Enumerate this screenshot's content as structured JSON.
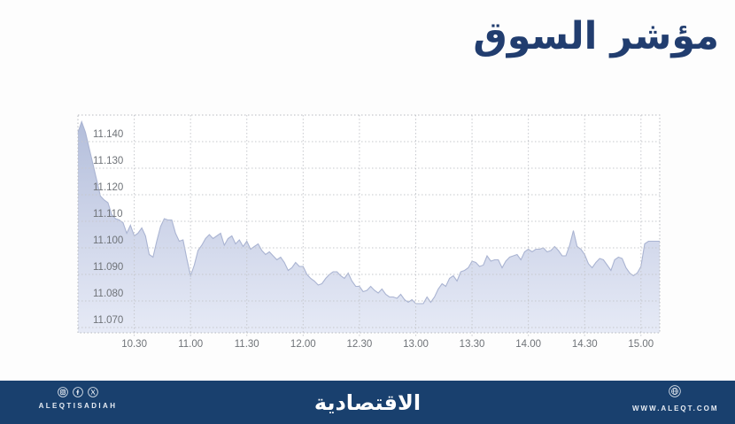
{
  "title": "مؤشر السوق",
  "colors": {
    "page_bg": "#fdfdfd",
    "title": "#213d6f",
    "footer_bg": "#19406e",
    "footer_text": "#e8edf4",
    "grid": "#c6c8cd",
    "plot_border": "#b8bac0",
    "axis_text": "#6f7378",
    "area_top": "#b2bdda",
    "area_mid": "#ccd3e8",
    "area_bottom": "#e6eaf6",
    "line": "#aab4d2",
    "plot_bg": "#ffffff"
  },
  "chart_data": {
    "type": "area",
    "title": "مؤشر السوق",
    "x_start_minutes": 600,
    "x_step_minutes": 2,
    "x_ticks": [
      {
        "minutes": 630,
        "label": "10.30"
      },
      {
        "minutes": 660,
        "label": "11.00"
      },
      {
        "minutes": 690,
        "label": "11.30"
      },
      {
        "minutes": 720,
        "label": "12.00"
      },
      {
        "minutes": 750,
        "label": "12.30"
      },
      {
        "minutes": 780,
        "label": "13.00"
      },
      {
        "minutes": 810,
        "label": "13.30"
      },
      {
        "minutes": 840,
        "label": "14.00"
      },
      {
        "minutes": 870,
        "label": "14.30"
      },
      {
        "minutes": 900,
        "label": "15.00"
      }
    ],
    "y_ticks": [
      {
        "value": 11.14,
        "label": "11.140"
      },
      {
        "value": 11.13,
        "label": "11.130"
      },
      {
        "value": 11.12,
        "label": "11.120"
      },
      {
        "value": 11.11,
        "label": "11.110"
      },
      {
        "value": 11.1,
        "label": "11.100"
      },
      {
        "value": 11.09,
        "label": "11.090"
      },
      {
        "value": 11.08,
        "label": "11.080"
      },
      {
        "value": 11.07,
        "label": "11.070"
      }
    ],
    "x_range_minutes": [
      600,
      910
    ],
    "y_range": [
      11.068,
      11.15
    ],
    "grid": true,
    "values": [
      11.1435,
      11.1475,
      11.1435,
      11.1375,
      11.1315,
      11.1255,
      11.1195,
      11.118,
      11.117,
      11.1125,
      11.111,
      11.1105,
      11.1095,
      11.1055,
      11.1085,
      11.1045,
      11.1055,
      11.1075,
      11.1045,
      11.0975,
      11.0965,
      11.1025,
      11.108,
      11.111,
      11.1105,
      11.1105,
      11.1055,
      11.1025,
      11.103,
      11.096,
      11.0895,
      11.0935,
      11.099,
      11.101,
      11.1035,
      11.105,
      11.1035,
      11.1045,
      11.1055,
      11.101,
      11.1035,
      11.1045,
      11.1015,
      11.103,
      11.1005,
      11.1025,
      11.0995,
      11.1005,
      11.1015,
      11.099,
      11.0975,
      11.0985,
      11.097,
      11.0955,
      11.0965,
      11.0945,
      11.0915,
      11.0925,
      11.0945,
      11.093,
      11.093,
      11.09,
      11.0885,
      11.0875,
      11.086,
      11.0865,
      11.0885,
      11.09,
      11.091,
      11.091,
      11.0895,
      11.0885,
      11.0905,
      11.0875,
      11.0855,
      11.0855,
      11.0835,
      11.084,
      11.0855,
      11.084,
      11.083,
      11.0845,
      11.0825,
      11.0815,
      11.0815,
      11.081,
      11.0825,
      11.0805,
      11.0795,
      11.0805,
      11.079,
      11.079,
      11.079,
      11.0815,
      11.0795,
      11.0815,
      11.0845,
      11.0865,
      11.0855,
      11.0885,
      11.0895,
      11.0875,
      11.091,
      11.0915,
      11.0925,
      11.095,
      11.0945,
      11.093,
      11.0935,
      11.097,
      11.095,
      11.0955,
      11.0955,
      11.0925,
      11.095,
      11.0965,
      11.097,
      11.0975,
      11.0955,
      11.0985,
      11.0995,
      11.0985,
      11.0995,
      11.0995,
      11.1,
      11.0985,
      11.099,
      11.1005,
      11.099,
      11.097,
      11.097,
      11.101,
      11.1065,
      11.1005,
      11.0995,
      11.0975,
      11.094,
      11.0925,
      11.0945,
      11.096,
      11.0955,
      11.0935,
      11.0915,
      11.0955,
      11.0965,
      11.096,
      11.0925,
      11.0905,
      11.0895,
      11.0905,
      11.093,
      11.1015,
      11.1025,
      11.1025,
      11.1025,
      11.1025
    ]
  },
  "footer": {
    "brand_latin": "ALEQTISADIAH",
    "brand_arabic": "الاقتصادية",
    "website": "WWW.ALEQT.COM",
    "social_icons": [
      "instagram",
      "facebook",
      "x"
    ]
  }
}
